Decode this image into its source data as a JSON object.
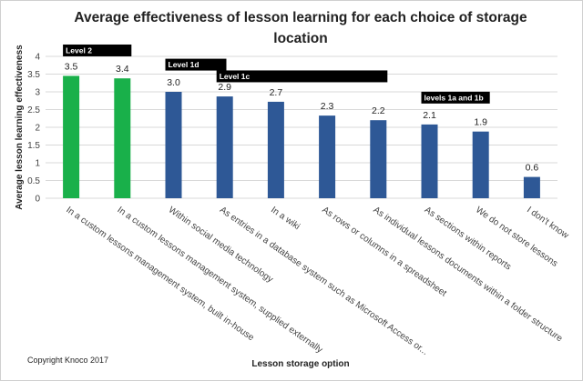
{
  "chart_data": {
    "type": "bar",
    "title": "Average effectiveness of lesson learning for each choice of storage location",
    "title_lines": [
      "Average effectiveness of lesson learning for each choice of storage",
      "location"
    ],
    "xlabel": "Lesson storage option",
    "ylabel": "Average lesson learning effectiveness",
    "ylim": [
      0,
      4
    ],
    "yticks": [
      "0",
      "0.5",
      "1",
      "1.5",
      "2",
      "2.5",
      "3",
      "3.5",
      "4"
    ],
    "grid": true,
    "categories": [
      "In a custom lessons management system, built in-house",
      "In a custom lessons management system, supplied externally",
      "Within social media technology",
      "As entries in a database system such as Microsoft Access or...",
      "In a wiki",
      "As rows or columns in a spreadsheet",
      "As individual lessons documents within a folder structure",
      "As sections within reports",
      "We do not store lessons",
      "I don't know"
    ],
    "values": [
      3.45,
      3.38,
      3.0,
      2.87,
      2.72,
      2.33,
      2.2,
      2.08,
      1.88,
      0.6
    ],
    "data_labels": [
      "3.5",
      "3.4",
      "3.0",
      "2.9",
      "2.7",
      "2.3",
      "2.2",
      "2.1",
      "1.9",
      "0.6"
    ],
    "colors": [
      "#19b04a",
      "#19b04a",
      "#2e5896",
      "#2e5896",
      "#2e5896",
      "#2e5896",
      "#2e5896",
      "#2e5896",
      "#2e5896",
      "#2e5896"
    ],
    "annotations": [
      {
        "text": "Level 2",
        "first_bar": 0,
        "last_bar": 1,
        "y": 4.18
      },
      {
        "text": "Level 1d",
        "first_bar": 2,
        "last_bar": 2,
        "y": 3.78
      },
      {
        "text": "Level 1c",
        "first_bar": 3,
        "last_bar": 6,
        "y": 3.45
      },
      {
        "text": "levels 1a and 1b",
        "first_bar": 7,
        "last_bar": 8,
        "y": 2.85
      }
    ]
  },
  "footer": {
    "copyright": "Copyright Knoco 2017"
  }
}
